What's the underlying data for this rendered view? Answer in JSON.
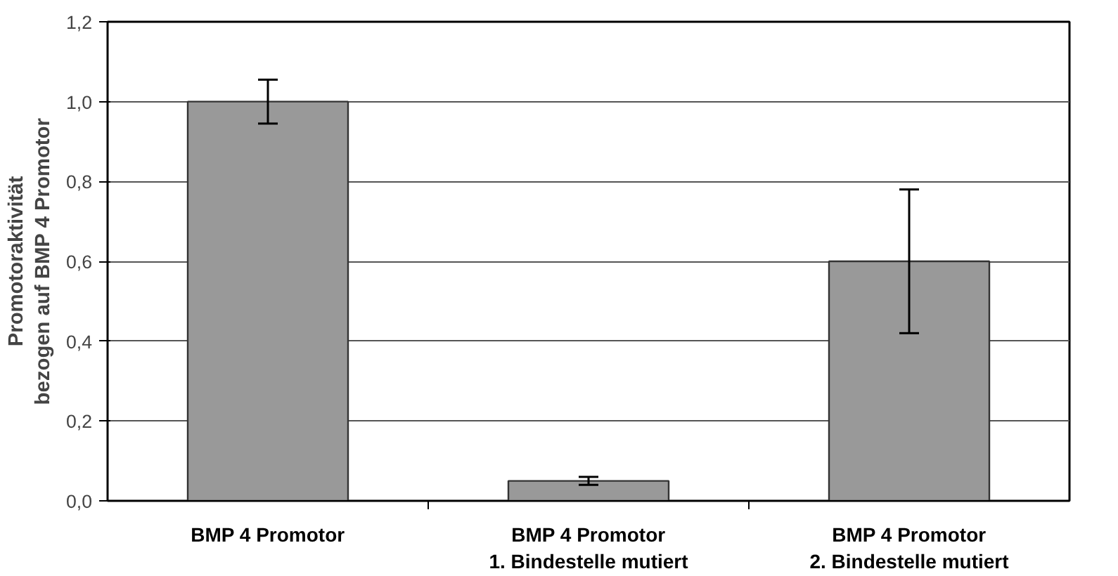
{
  "chart_data": {
    "type": "bar",
    "ylabel": "Promotoraktivität\nbezogen auf BMP 4 Promotor",
    "categories": [
      "BMP 4 Promotor",
      "BMP 4 Promotor\n1. Bindestelle mutiert",
      "BMP 4 Promotor\n2. Bindestelle mutiert"
    ],
    "values": [
      1.0,
      0.05,
      0.6
    ],
    "errors": [
      0.055,
      0.01,
      0.18
    ],
    "color": "#999999",
    "ylim": [
      0,
      1.2
    ],
    "yticks": [
      {
        "value": 0,
        "label": "0,0"
      },
      {
        "value": 0.2,
        "label": "0,2"
      },
      {
        "value": 0.4,
        "label": "0,4"
      },
      {
        "value": 0.6,
        "label": "0,6"
      },
      {
        "value": 0.8,
        "label": "0,8"
      },
      {
        "value": 1.0,
        "label": "1,0"
      },
      {
        "value": 1.2,
        "label": "1,2"
      }
    ],
    "grid": "y"
  }
}
